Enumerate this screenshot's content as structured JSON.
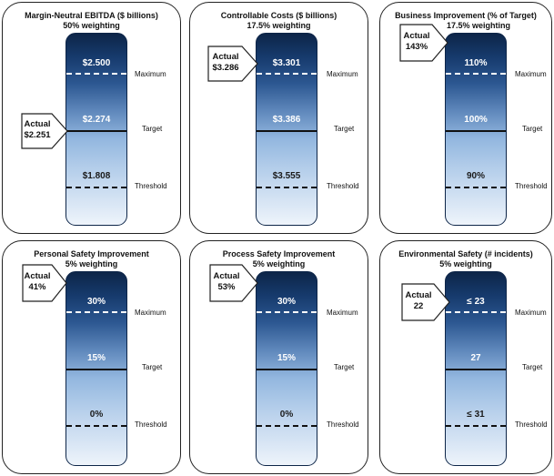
{
  "common": {
    "maximum_label": "Maximum",
    "target_label": "Target",
    "threshold_label": "Threshold",
    "actual_label": "Actual"
  },
  "panels": [
    {
      "title": "Margin-Neutral EBITDA ($ billions)",
      "subtitle": "50% weighting",
      "maximum_value": "$2.500",
      "target_value": "$2.274",
      "threshold_value": "$1.808",
      "actual_value": "$2.251",
      "actual_position": "target"
    },
    {
      "title": "Controllable Costs ($ billions)",
      "subtitle": "17.5% weighting",
      "maximum_value": "$3.301",
      "target_value": "$3.386",
      "threshold_value": "$3.555",
      "actual_value": "$3.286",
      "actual_position": "maximum"
    },
    {
      "title": "Business Improvement (% of Target)",
      "subtitle": "17.5% weighting",
      "maximum_value": "110%",
      "target_value": "100%",
      "threshold_value": "90%",
      "actual_value": "143%",
      "actual_position": "above-maximum"
    },
    {
      "title": "Personal Safety Improvement",
      "subtitle": "5% weighting",
      "maximum_value": "30%",
      "target_value": "15%",
      "threshold_value": "0%",
      "actual_value": "41%",
      "actual_position": "above-maximum"
    },
    {
      "title": "Process Safety Improvement",
      "subtitle": "5% weighting",
      "maximum_value": "30%",
      "target_value": "15%",
      "threshold_value": "0%",
      "actual_value": "53%",
      "actual_position": "above-maximum"
    },
    {
      "title": "Environmental Safety (# incidents)",
      "subtitle": "5% weighting",
      "maximum_value": "≤ 23",
      "target_value": "27",
      "threshold_value": "≤ 31",
      "actual_value": "22",
      "actual_position": "above-maximum"
    }
  ]
}
